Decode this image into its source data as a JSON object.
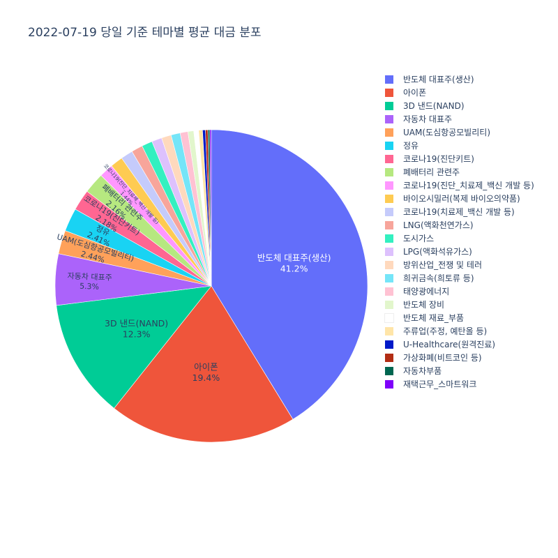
{
  "chart_data": {
    "type": "pie",
    "title": "2022-07-19 당일 기준 테마별 평균 대금 분포",
    "legend_position": "right",
    "slices": [
      {
        "label": "반도체 대표주(생산)",
        "value": 41.2,
        "color": "#636efa",
        "text": "41.2%"
      },
      {
        "label": "아이폰",
        "value": 19.4,
        "color": "#EF553B",
        "text": "19.4%"
      },
      {
        "label": "3D 낸드(NAND)",
        "value": 12.3,
        "color": "#00cc96",
        "text": "12.3%"
      },
      {
        "label": "자동차 대표주",
        "value": 5.3,
        "color": "#ab63fa",
        "text": "5.3%"
      },
      {
        "label": "UAM(도심항공모빌리티)",
        "value": 2.44,
        "color": "#FFA15A",
        "text": "2.44%"
      },
      {
        "label": "정유",
        "value": 2.41,
        "color": "#19d3f3",
        "text": "2.41%"
      },
      {
        "label": "코로나19(진단키트)",
        "value": 2.18,
        "color": "#FF6692",
        "text": "2.18%"
      },
      {
        "label": "폐배터리 관련주",
        "value": 2.16,
        "color": "#B6E880",
        "text": "2.16%"
      },
      {
        "label": "코로나19(진단_치료제_백신 개발 등)",
        "value": 1.44,
        "color": "#FF97FF",
        "text": "1.44%"
      },
      {
        "label": "바이오시밀러(복제 바이오의약품)",
        "value": 1.3,
        "color": "#FECB52",
        "text": ""
      },
      {
        "label": "코로나19(치료제_백신 개발 등)",
        "value": 1.25,
        "color": "#c5cbfb",
        "text": ""
      },
      {
        "label": "LNG(액화천연가스)",
        "value": 1.17,
        "color": "#F7A59B",
        "text": ""
      },
      {
        "label": "도시가스",
        "value": 1.1,
        "color": "#33F0C0",
        "text": ""
      },
      {
        "label": "LPG(액화석유가스)",
        "value": 1.05,
        "color": "#DDC1FD",
        "text": ""
      },
      {
        "label": "방위산업_전쟁 및 테러",
        "value": 1.0,
        "color": "#FFD9BD",
        "text": ""
      },
      {
        "label": "희귀금속(희토류 등)",
        "value": 0.95,
        "color": "#75E5F8",
        "text": ""
      },
      {
        "label": "태양광에너지",
        "value": 0.8,
        "color": "#FFC2D3",
        "text": ""
      },
      {
        "label": "반도체 장비",
        "value": 0.6,
        "color": "#E2F6CC",
        "text": ""
      },
      {
        "label": "반도체 재료_부품",
        "value": 0.5,
        "color": "#FFFFFF",
        "text": ""
      },
      {
        "label": "주류업(주정, 예탄올 등)",
        "value": 0.4,
        "color": "#FFE5A8",
        "text": ""
      },
      {
        "label": "U-Healthcare(원격진료)",
        "value": 0.3,
        "color": "#0019c8",
        "text": ""
      },
      {
        "label": "가상화폐(비트코인 등)",
        "value": 0.25,
        "color": "#B22D14",
        "text": ""
      },
      {
        "label": "자동차부품",
        "value": 0.2,
        "color": "#006650",
        "text": ""
      },
      {
        "label": "재택근무_스마트워크",
        "value": 0.15,
        "color": "#7F00FA",
        "text": ""
      }
    ]
  }
}
